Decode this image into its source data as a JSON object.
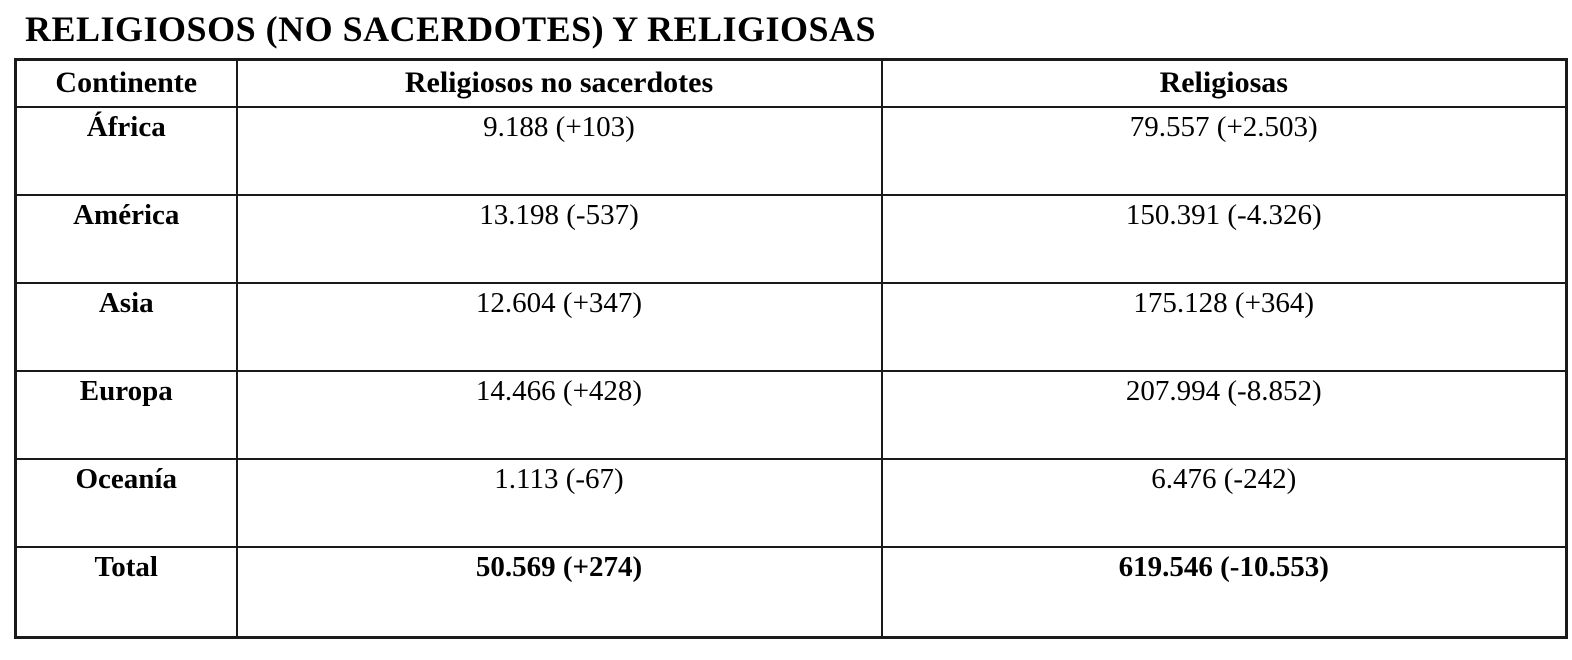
{
  "page": {
    "title": "RELIGIOSOS (NO SACERDOTES) Y RELIGIOSAS"
  },
  "table": {
    "headers": [
      "Continente",
      "Religiosos no sacerdotes",
      "Religiosas"
    ],
    "rows": [
      [
        "África",
        "9.188 (+103)",
        "79.557 (+2.503)"
      ],
      [
        "América",
        "13.198 (-537)",
        "150.391 (-4.326)"
      ],
      [
        "Asia",
        "12.604 (+347)",
        "175.128 (+364)"
      ],
      [
        "Europa",
        "14.466 (+428)",
        "207.994 (-8.852)"
      ],
      [
        "Oceanía",
        "1.113 (-67)",
        "6.476 (-242)"
      ],
      [
        "Total",
        "50.569 (+274)",
        "619.546 (-10.553)"
      ]
    ]
  },
  "chart_data": {
    "type": "table",
    "title": "RELIGIOSOS (NO SACERDOTES) Y RELIGIOSAS",
    "columns": [
      "Continente",
      "Religiosos no sacerdotes",
      "Religiosas"
    ],
    "records": [
      {
        "continente": "África",
        "religiosos_no_sacerdotes": 9188,
        "religiosos_variacion": 103,
        "religiosas": 79557,
        "religiosas_variacion": 2503
      },
      {
        "continente": "América",
        "religiosos_no_sacerdotes": 13198,
        "religiosos_variacion": -537,
        "religiosas": 150391,
        "religiosas_variacion": -4326
      },
      {
        "continente": "Asia",
        "religiosos_no_sacerdotes": 12604,
        "religiosos_variacion": 347,
        "religiosas": 175128,
        "religiosas_variacion": 364
      },
      {
        "continente": "Europa",
        "religiosos_no_sacerdotes": 14466,
        "religiosos_variacion": 428,
        "religiosas": 207994,
        "religiosas_variacion": -8852
      },
      {
        "continente": "Oceanía",
        "religiosos_no_sacerdotes": 1113,
        "religiosos_variacion": -67,
        "religiosas": 6476,
        "religiosas_variacion": -242
      },
      {
        "continente": "Total",
        "religiosos_no_sacerdotes": 50569,
        "religiosos_variacion": 274,
        "religiosas": 619546,
        "religiosas_variacion": -10553
      }
    ]
  }
}
